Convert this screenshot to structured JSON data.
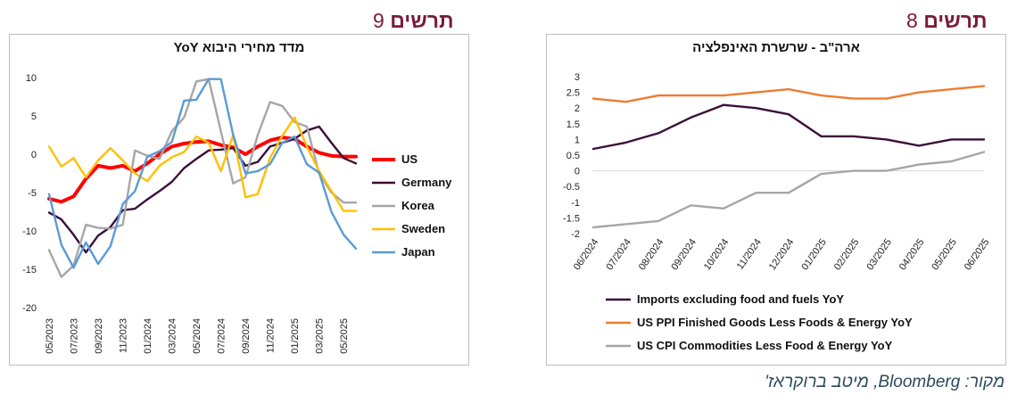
{
  "figures": {
    "left": {
      "word": "תרשים",
      "number": "9"
    },
    "right": {
      "word": "תרשים",
      "number": "8"
    }
  },
  "source": "מקור: Bloomberg, מיטב ברוקראז'",
  "colors": {
    "heading": "#7a1a3c",
    "source": "#2a4a5a"
  },
  "chart_data": [
    {
      "type": "line",
      "title": "מדד מחירי היבוא YoY",
      "x": [
        "05/2023",
        "06/2023",
        "07/2023",
        "08/2023",
        "09/2023",
        "10/2023",
        "11/2023",
        "12/2023",
        "01/2024",
        "02/2024",
        "03/2024",
        "04/2024",
        "05/2024",
        "06/2024",
        "07/2024",
        "08/2024",
        "09/2024",
        "10/2024",
        "11/2024",
        "12/2024",
        "01/2025",
        "02/2025",
        "03/2025",
        "04/2025",
        "05/2025",
        "06/2025"
      ],
      "x_tick_labels": [
        "05/2023",
        "07/2023",
        "09/2023",
        "11/2023",
        "01/2024",
        "03/2024",
        "05/2024",
        "07/2024",
        "09/2024",
        "11/2024",
        "01/2025",
        "03/2025",
        "05/2025"
      ],
      "ylim": [
        -20,
        10
      ],
      "yticks": [
        10,
        5,
        0,
        -5,
        -10,
        -15,
        -20
      ],
      "grid": false,
      "legend_position": "right",
      "series": [
        {
          "name": "US",
          "color": "#ff0000",
          "width": 4,
          "values": [
            -5.8,
            -6.2,
            -5.5,
            -3.2,
            -1.5,
            -1.8,
            -1.5,
            -2.2,
            -1.2,
            0.0,
            1.0,
            1.4,
            1.6,
            1.7,
            1.2,
            0.9,
            0.0,
            1.0,
            1.8,
            2.2,
            2.0,
            1.0,
            0.2,
            -0.2,
            -0.3,
            -0.3
          ]
        },
        {
          "name": "Germany",
          "color": "#3b0f3a",
          "width": 2.4,
          "values": [
            -7.6,
            -8.5,
            -10.5,
            -12.8,
            -10.6,
            -9.5,
            -7.3,
            -7.1,
            -5.9,
            -4.8,
            -3.6,
            -1.8,
            -0.6,
            0.5,
            0.6,
            0.8,
            -1.5,
            -1.0,
            1.0,
            1.5,
            2.0,
            3.1,
            3.6,
            1.5,
            -0.5,
            -1.2
          ]
        },
        {
          "name": "Korea",
          "color": "#a6a6a6",
          "width": 2.4,
          "values": [
            -12.5,
            -16.0,
            -14.5,
            -9.2,
            -9.6,
            -9.7,
            -9.2,
            0.5,
            -0.2,
            -0.6,
            3.0,
            4.8,
            9.5,
            9.8,
            3.0,
            -3.8,
            -3.0,
            2.5,
            6.8,
            6.3,
            4.2,
            3.6,
            -2.5,
            -5.0,
            -6.3,
            -6.3
          ]
        },
        {
          "name": "Sweden",
          "color": "#ffc000",
          "width": 2.4,
          "values": [
            1.0,
            -1.6,
            -0.5,
            -3.0,
            -0.8,
            0.8,
            -0.8,
            -2.5,
            -3.5,
            -1.5,
            -0.4,
            0.3,
            2.3,
            1.5,
            -2.2,
            2.5,
            -5.6,
            -5.2,
            -0.5,
            2.4,
            4.8,
            1.0,
            -2.2,
            -4.8,
            -7.4,
            -7.4
          ]
        },
        {
          "name": "Japan",
          "color": "#5b9bd5",
          "width": 2.4,
          "values": [
            -5.2,
            -11.8,
            -14.8,
            -11.5,
            -14.3,
            -12.0,
            -6.5,
            -4.8,
            -0.3,
            0.4,
            1.6,
            7.0,
            7.1,
            9.8,
            9.8,
            2.5,
            -2.5,
            -2.2,
            -1.3,
            1.5,
            2.3,
            -1.3,
            -2.4,
            -7.5,
            -10.5,
            -12.3
          ]
        }
      ]
    },
    {
      "type": "line",
      "title": "ארה\"ב - שרשרת האינפלציה",
      "x": [
        "06/2024",
        "07/2024",
        "08/2024",
        "09/2024",
        "10/2024",
        "11/2024",
        "12/2024",
        "01/2025",
        "02/2025",
        "03/2025",
        "04/2025",
        "05/2025",
        "06/2025"
      ],
      "ylim": [
        -2,
        3
      ],
      "yticks": [
        3,
        2.5,
        2,
        1.5,
        1,
        0.5,
        0,
        -0.5,
        -1,
        -1.5,
        -2
      ],
      "grid": false,
      "legend_position": "bottom",
      "series": [
        {
          "name": "Imports excluding food and fuels YoY",
          "color": "#3b0f3a",
          "width": 2.4,
          "values": [
            0.7,
            0.9,
            1.2,
            1.7,
            2.1,
            2.0,
            1.8,
            1.1,
            1.1,
            1.0,
            0.8,
            1.0,
            1.0
          ]
        },
        {
          "name": "US PPI Finished Goods Less Foods & Energy YoY",
          "color": "#ed7d31",
          "width": 2.4,
          "values": [
            2.3,
            2.2,
            2.4,
            2.4,
            2.4,
            2.5,
            2.6,
            2.4,
            2.3,
            2.3,
            2.5,
            2.6,
            2.7
          ]
        },
        {
          "name": "US CPI Commodities Less Food & Energy YoY",
          "color": "#a6a6a6",
          "width": 2.4,
          "values": [
            -1.8,
            -1.7,
            -1.6,
            -1.1,
            -1.2,
            -0.7,
            -0.7,
            -0.1,
            0.0,
            0.0,
            0.2,
            0.3,
            0.6
          ]
        }
      ]
    }
  ]
}
